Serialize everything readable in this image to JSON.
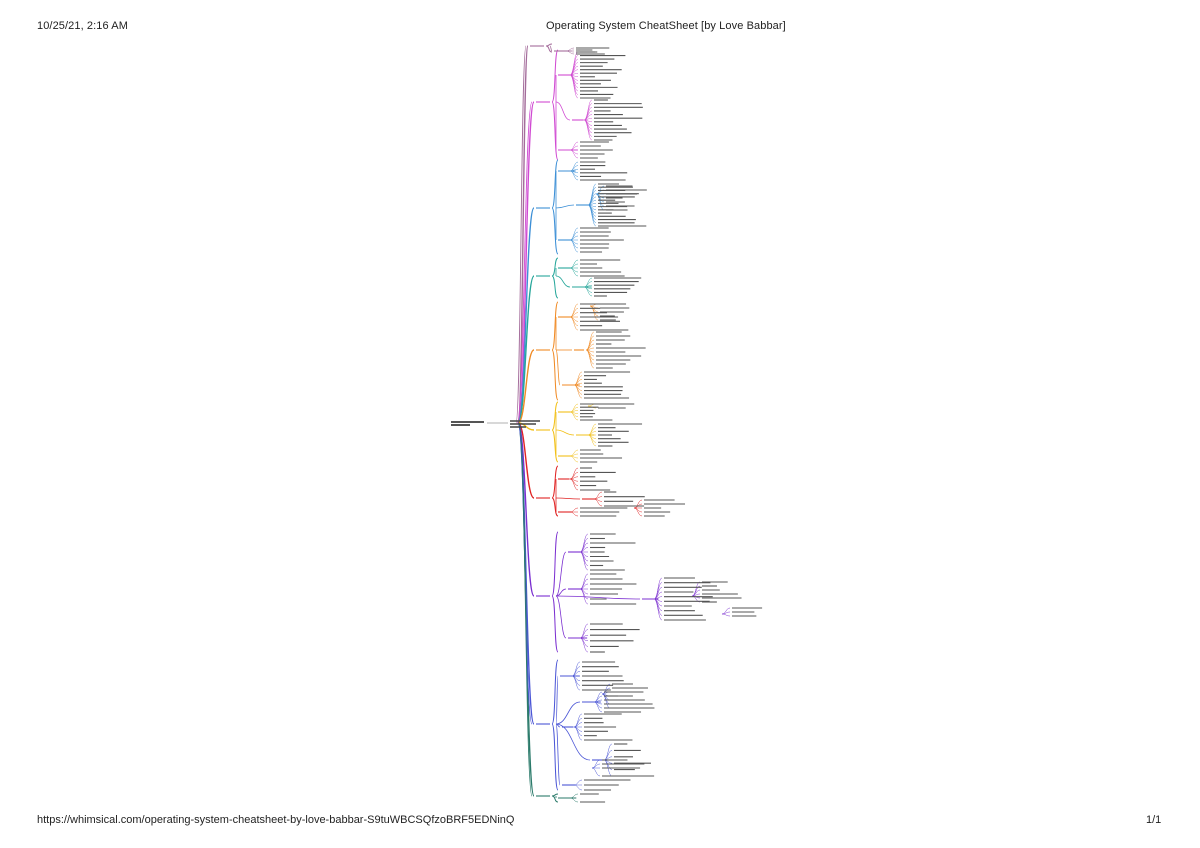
{
  "header": {
    "date": "10/25/21, 2:16 AM",
    "title": "Operating System CheatSheet [by Love Babbar]"
  },
  "footer": {
    "url": "https://whimsical.com/operating-system-cheatsheet-by-love-babbar-S9tuWBCSQfzoBRF5EDNinQ",
    "page": "1/1"
  },
  "diagram": {
    "type": "mind-map",
    "branches": [
      {
        "key": "b1",
        "color": "#a46c9b"
      },
      {
        "key": "b2",
        "color": "#d04ad2"
      },
      {
        "key": "b3",
        "color": "#3c8fd6"
      },
      {
        "key": "b4",
        "color": "#26a69a"
      },
      {
        "key": "b5",
        "color": "#f08a24"
      },
      {
        "key": "b6",
        "color": "#f2c018"
      },
      {
        "key": "b7",
        "color": "#e02424"
      },
      {
        "key": "b8",
        "color": "#7b2fd0"
      },
      {
        "key": "b9",
        "color": "#4b56d6"
      },
      {
        "key": "b10",
        "color": "#2a7a6a"
      }
    ]
  }
}
